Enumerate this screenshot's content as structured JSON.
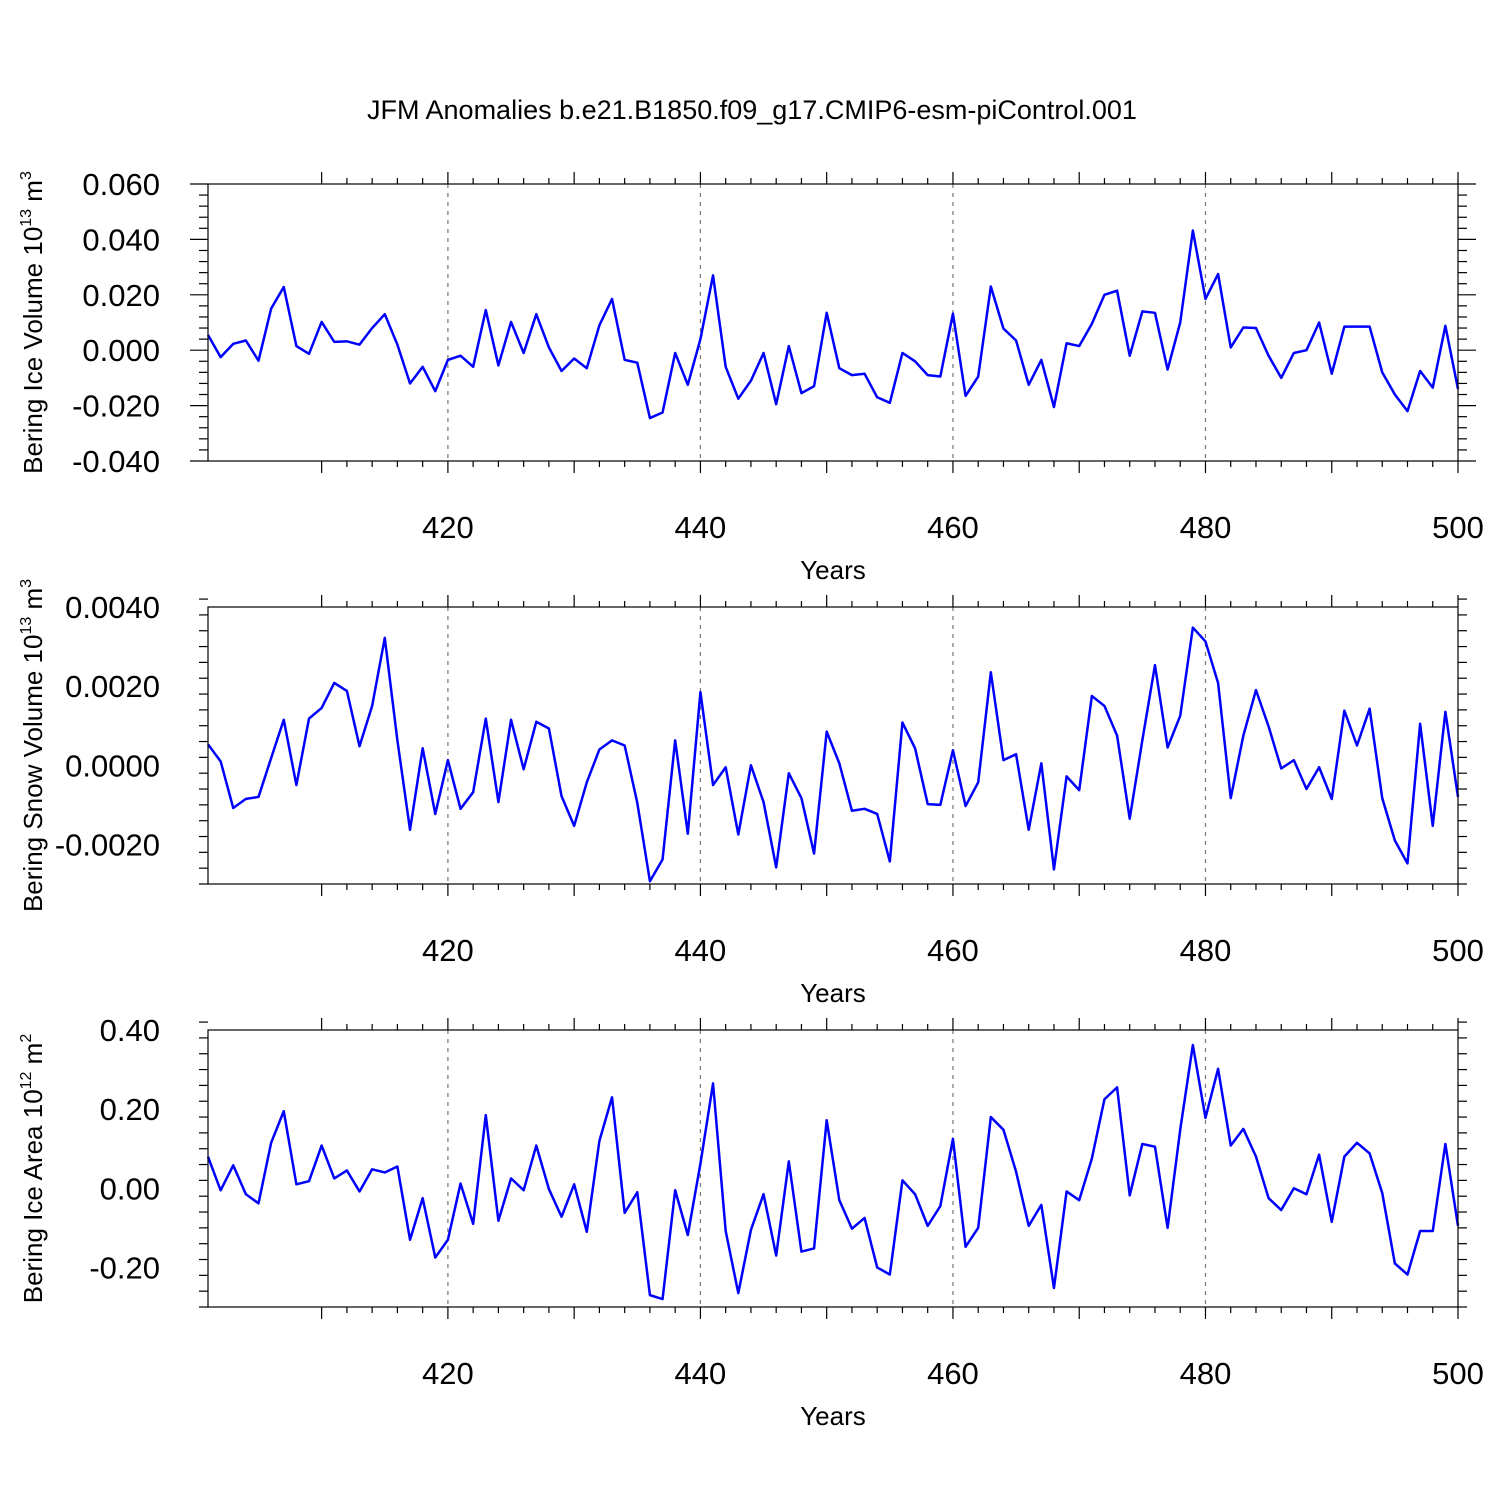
{
  "figure_title": "JFM Anomalies b.e21.B1850.f09_g17.CMIP6-esm-piControl.001",
  "line_color": "#0000ff",
  "chart_data": [
    {
      "type": "line",
      "ylabel": {
        "main": "Bering Ice Volume 10",
        "sup": "13",
        "unit": " m",
        "unit_sup": "3"
      },
      "xlabel": "Years",
      "xlim": [
        401,
        500
      ],
      "ylim": [
        -0.04,
        0.06
      ],
      "yticks": [
        -0.04,
        -0.02,
        0.0,
        0.02,
        0.04,
        0.06
      ],
      "ytick_labels": [
        "-0.040",
        "-0.020",
        "0.000",
        "0.020",
        "0.040",
        "0.060"
      ],
      "xticks": [
        420,
        440,
        460,
        480,
        500
      ],
      "xtick_labels": [
        "420",
        "440",
        "460",
        "480",
        "500"
      ],
      "ref_lines_x": [
        420,
        440,
        460,
        480
      ],
      "x_start": 401,
      "values": [
        0.0055,
        -0.0025,
        0.0023,
        0.0035,
        -0.0038,
        0.015,
        0.0228,
        0.0015,
        -0.0013,
        0.0102,
        0.003,
        0.0032,
        0.002,
        0.008,
        0.013,
        0.002,
        -0.012,
        -0.006,
        -0.0148,
        -0.0035,
        -0.002,
        -0.006,
        0.0145,
        -0.0055,
        0.0102,
        -0.001,
        0.013,
        0.001,
        -0.0075,
        -0.003,
        -0.0065,
        0.009,
        0.0185,
        -0.0035,
        -0.0045,
        -0.0245,
        -0.0225,
        -0.001,
        -0.0125,
        0.004,
        0.027,
        -0.006,
        -0.0175,
        -0.011,
        -0.001,
        -0.0195,
        0.0015,
        -0.0155,
        -0.013,
        0.0135,
        -0.0065,
        -0.009,
        -0.0085,
        -0.017,
        -0.019,
        -0.001,
        -0.004,
        -0.009,
        -0.0095,
        0.0132,
        -0.0165,
        -0.0095,
        0.023,
        0.0078,
        0.0035,
        -0.0125,
        -0.0035,
        -0.0205,
        0.0025,
        0.0015,
        0.0095,
        0.02,
        0.0215,
        -0.002,
        0.014,
        0.0135,
        -0.007,
        0.01,
        0.0432,
        0.0185,
        0.0275,
        0.001,
        0.0082,
        0.008,
        -0.002,
        -0.01,
        -0.001,
        0.0,
        0.01,
        -0.0085,
        0.0085,
        0.0085,
        0.0085,
        -0.008,
        -0.016,
        -0.022,
        -0.0075,
        -0.0135,
        0.0088,
        -0.014
      ]
    },
    {
      "type": "line",
      "ylabel": {
        "main": "Bering Snow Volume 10",
        "sup": "13",
        "unit": " m",
        "unit_sup": "3"
      },
      "xlabel": "Years",
      "xlim": [
        401,
        500
      ],
      "ylim": [
        -0.003,
        0.004
      ],
      "yticks": [
        -0.002,
        0.0,
        0.002,
        0.004
      ],
      "ytick_labels": [
        "-0.0020",
        "0.0000",
        "0.0020",
        "0.0040"
      ],
      "xticks": [
        420,
        440,
        460,
        480,
        500
      ],
      "xtick_labels": [
        "420",
        "440",
        "460",
        "480",
        "500"
      ],
      "ref_lines_x": [
        420,
        440,
        460,
        480
      ],
      "x_start": 401,
      "values": [
        0.00053,
        0.0001,
        -0.00108,
        -0.00085,
        -0.0008,
        0.00018,
        0.00115,
        -0.0005,
        0.00118,
        0.00145,
        0.00208,
        0.00188,
        0.00048,
        0.0015,
        0.00322,
        0.00063,
        -0.00163,
        0.00043,
        -0.00123,
        0.00013,
        -0.0011,
        -0.00068,
        0.00118,
        -0.00093,
        0.00115,
        -0.0001,
        0.0011,
        0.00093,
        -0.00078,
        -0.00153,
        -0.00043,
        0.0004,
        0.00063,
        0.0005,
        -0.00095,
        -0.00293,
        -0.00238,
        0.00063,
        -0.00173,
        0.00185,
        -0.0005,
        -5e-05,
        -0.00175,
        0.0,
        -0.00093,
        -0.00258,
        -0.0002,
        -0.00083,
        -0.00223,
        0.00085,
        5e-05,
        -0.00115,
        -0.0011,
        -0.00123,
        -0.00243,
        0.00108,
        0.00043,
        -0.00098,
        -0.001,
        0.00038,
        -0.00103,
        -0.00043,
        0.00235,
        0.00013,
        0.00028,
        -0.00163,
        5e-05,
        -0.00263,
        -0.00028,
        -0.00063,
        0.00175,
        0.0015,
        0.00075,
        -0.00135,
        0.00063,
        0.00253,
        0.00045,
        0.00125,
        0.00348,
        0.00313,
        0.00208,
        -0.00083,
        0.00075,
        0.0019,
        0.00098,
        -8e-05,
        0.00013,
        -0.0006,
        -5e-05,
        -0.00085,
        0.00138,
        0.0005,
        0.00143,
        -0.00083,
        -0.0019,
        -0.00248,
        0.00105,
        -0.00153,
        0.00135,
        -0.0008
      ]
    },
    {
      "type": "line",
      "ylabel": {
        "main": "Bering Ice Area 10",
        "sup": "12",
        "unit": " m",
        "unit_sup": "2"
      },
      "xlabel": "Years",
      "xlim": [
        401,
        500
      ],
      "ylim": [
        -0.3,
        0.4
      ],
      "yticks": [
        -0.2,
        0.0,
        0.2,
        0.4
      ],
      "ytick_labels": [
        "-0.20",
        "0.00",
        "0.20",
        "0.40"
      ],
      "xticks": [
        420,
        440,
        460,
        480,
        500
      ],
      "xtick_labels": [
        "420",
        "440",
        "460",
        "480",
        "500"
      ],
      "ref_lines_x": [
        420,
        440,
        460,
        480
      ],
      "x_start": 401,
      "values": [
        0.08,
        -0.005,
        0.058,
        -0.015,
        -0.038,
        0.115,
        0.195,
        0.01,
        0.018,
        0.108,
        0.025,
        0.045,
        -0.008,
        0.048,
        0.04,
        0.055,
        -0.13,
        -0.025,
        -0.175,
        -0.13,
        0.012,
        -0.09,
        0.185,
        -0.082,
        0.025,
        -0.005,
        0.108,
        -0.002,
        -0.072,
        0.01,
        -0.11,
        0.12,
        0.23,
        -0.062,
        -0.01,
        -0.27,
        -0.28,
        -0.005,
        -0.118,
        0.062,
        0.265,
        -0.108,
        -0.265,
        -0.105,
        -0.015,
        -0.17,
        0.068,
        -0.16,
        -0.152,
        0.172,
        -0.03,
        -0.102,
        -0.075,
        -0.2,
        -0.218,
        0.02,
        -0.015,
        -0.095,
        -0.045,
        0.125,
        -0.148,
        -0.1,
        0.18,
        0.148,
        0.042,
        -0.095,
        -0.042,
        -0.252,
        -0.008,
        -0.03,
        0.075,
        0.225,
        0.255,
        -0.018,
        0.112,
        0.105,
        -0.1,
        0.148,
        0.362,
        0.178,
        0.302,
        0.108,
        0.15,
        0.08,
        -0.025,
        -0.055,
        0.0,
        -0.015,
        0.085,
        -0.085,
        0.08,
        0.115,
        0.088,
        -0.012,
        -0.19,
        -0.218,
        -0.108,
        -0.108,
        0.112,
        -0.095
      ]
    }
  ]
}
